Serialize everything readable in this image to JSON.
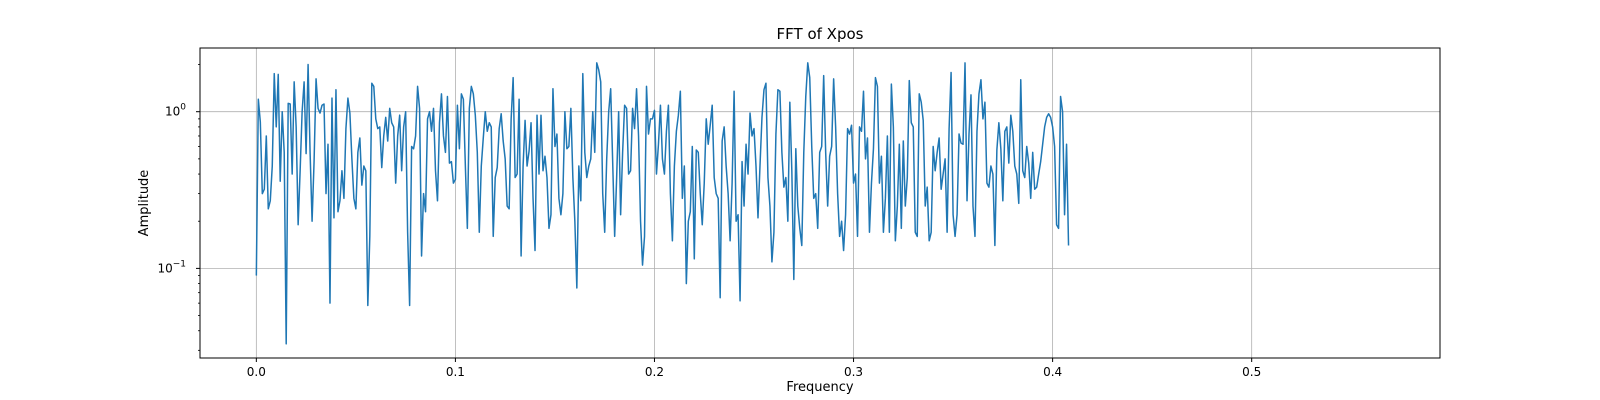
{
  "chart_data": {
    "type": "line",
    "title": "FFT of Xpos",
    "xlabel": "Frequency",
    "ylabel": "Amplitude",
    "xlim": [
      -0.0283,
      0.5946
    ],
    "ylim": [
      0.0268,
      2.55
    ],
    "yscale": "log",
    "grid": true,
    "x_ticks": [
      {
        "value": 0.0,
        "label": "0.0"
      },
      {
        "value": 0.1,
        "label": "0.1"
      },
      {
        "value": 0.2,
        "label": "0.2"
      },
      {
        "value": 0.3,
        "label": "0.3"
      },
      {
        "value": 0.4,
        "label": "0.4"
      },
      {
        "value": 0.5,
        "label": "0.5"
      }
    ],
    "y_ticks": [
      {
        "value": 0.1,
        "base": "10",
        "exp": "−1"
      },
      {
        "value": 1.0,
        "base": "10",
        "exp": "0"
      }
    ],
    "line_color": "#1f77b4",
    "series": [
      {
        "x_start": 0.0,
        "x_step": 0.001,
        "values": [
          0.09,
          1.2,
          0.86,
          0.3,
          0.32,
          0.7,
          0.24,
          0.27,
          0.45,
          1.75,
          0.8,
          1.73,
          0.36,
          1.0,
          0.55,
          0.033,
          1.13,
          1.12,
          0.4,
          1.55,
          0.8,
          0.19,
          0.42,
          1.0,
          1.55,
          0.54,
          2.0,
          0.55,
          0.2,
          0.48,
          1.62,
          1.05,
          0.98,
          1.1,
          1.12,
          0.3,
          0.62,
          0.06,
          1.22,
          0.21,
          1.38,
          0.23,
          0.27,
          0.42,
          0.28,
          0.78,
          1.22,
          0.98,
          0.5,
          0.28,
          0.24,
          0.55,
          0.68,
          0.34,
          0.45,
          0.42,
          0.058,
          0.16,
          1.52,
          1.45,
          0.9,
          0.78,
          0.8,
          0.44,
          0.7,
          0.92,
          0.65,
          1.05,
          0.85,
          0.8,
          0.35,
          0.7,
          0.95,
          0.42,
          0.8,
          1.0,
          0.17,
          0.058,
          0.6,
          0.58,
          0.7,
          1.45,
          1.05,
          0.12,
          0.3,
          0.23,
          0.9,
          1.0,
          0.75,
          1.05,
          0.42,
          0.27,
          0.85,
          1.3,
          0.7,
          0.55,
          1.25,
          0.47,
          0.48,
          0.35,
          0.37,
          1.1,
          0.58,
          1.3,
          1.2,
          0.45,
          0.18,
          1.05,
          1.45,
          1.3,
          0.95,
          0.55,
          0.17,
          0.45,
          0.68,
          1.0,
          0.75,
          0.85,
          0.8,
          0.16,
          0.38,
          0.44,
          0.78,
          0.97,
          0.65,
          0.5,
          0.25,
          0.24,
          0.9,
          1.65,
          0.38,
          0.4,
          1.2,
          0.12,
          0.45,
          0.88,
          0.45,
          0.56,
          0.85,
          0.28,
          0.13,
          0.95,
          0.4,
          0.95,
          0.42,
          0.52,
          0.38,
          0.18,
          0.22,
          1.4,
          0.6,
          0.72,
          0.28,
          0.22,
          0.3,
          1.0,
          0.58,
          0.6,
          1.05,
          0.38,
          0.2,
          0.075,
          0.45,
          0.27,
          1.75,
          0.55,
          0.38,
          0.45,
          0.5,
          1.0,
          0.55,
          2.05,
          1.85,
          1.55,
          0.3,
          0.17,
          0.5,
          1.0,
          1.4,
          0.48,
          0.16,
          0.38,
          1.0,
          0.22,
          0.55,
          1.1,
          1.05,
          0.4,
          0.42,
          1.05,
          0.78,
          1.4,
          0.7,
          0.2,
          0.105,
          0.16,
          1.45,
          0.72,
          0.9,
          0.9,
          1.02,
          0.4,
          0.62,
          1.1,
          0.5,
          0.4,
          0.75,
          1.1,
          0.3,
          0.15,
          0.45,
          0.75,
          0.95,
          1.35,
          0.28,
          0.45,
          0.08,
          0.2,
          0.23,
          0.6,
          0.115,
          0.57,
          0.55,
          0.3,
          0.19,
          0.35,
          0.9,
          0.62,
          0.82,
          1.1,
          0.38,
          0.3,
          0.28,
          0.065,
          0.65,
          0.8,
          0.45,
          0.3,
          0.15,
          0.35,
          1.35,
          0.2,
          0.22,
          0.062,
          0.48,
          0.25,
          0.62,
          0.4,
          0.98,
          0.7,
          0.78,
          0.45,
          0.21,
          0.45,
          0.92,
          1.38,
          1.52,
          0.38,
          0.25,
          0.11,
          0.17,
          0.72,
          1.38,
          1.35,
          0.55,
          0.33,
          0.38,
          0.2,
          1.15,
          0.42,
          0.085,
          0.58,
          0.25,
          0.18,
          0.14,
          0.55,
          1.25,
          2.05,
          1.65,
          0.6,
          0.28,
          0.3,
          0.18,
          0.55,
          0.6,
          1.7,
          0.55,
          0.25,
          0.52,
          0.6,
          1.62,
          0.8,
          0.3,
          0.16,
          0.2,
          0.13,
          0.22,
          0.78,
          0.72,
          0.82,
          0.35,
          0.4,
          0.16,
          0.8,
          0.75,
          1.35,
          0.5,
          0.68,
          0.17,
          0.35,
          0.58,
          1.65,
          1.45,
          0.35,
          0.52,
          0.17,
          0.28,
          0.7,
          0.17,
          1.5,
          0.8,
          0.15,
          0.25,
          0.62,
          0.18,
          0.65,
          0.25,
          0.38,
          1.58,
          0.85,
          0.8,
          0.17,
          0.16,
          1.3,
          1.15,
          0.88,
          0.25,
          0.33,
          0.15,
          0.17,
          0.6,
          0.42,
          0.55,
          0.68,
          0.32,
          0.4,
          0.5,
          0.17,
          0.78,
          1.78,
          0.22,
          0.16,
          0.22,
          0.72,
          0.63,
          0.62,
          2.05,
          0.27,
          0.72,
          1.28,
          0.25,
          0.16,
          0.75,
          1.3,
          1.6,
          0.9,
          1.15,
          0.35,
          0.33,
          0.45,
          0.4,
          0.14,
          0.57,
          0.85,
          0.58,
          0.27,
          0.75,
          0.8,
          0.47,
          0.95,
          0.75,
          0.45,
          0.4,
          0.26,
          1.6,
          0.42,
          0.38,
          0.6,
          0.47,
          0.28,
          0.55,
          0.32,
          0.33,
          0.4,
          0.48,
          0.62,
          0.8,
          0.92,
          0.97,
          0.92,
          0.8,
          0.6,
          0.19,
          0.18,
          1.25,
          1.0,
          0.22,
          0.62,
          0.14
        ]
      }
    ]
  }
}
